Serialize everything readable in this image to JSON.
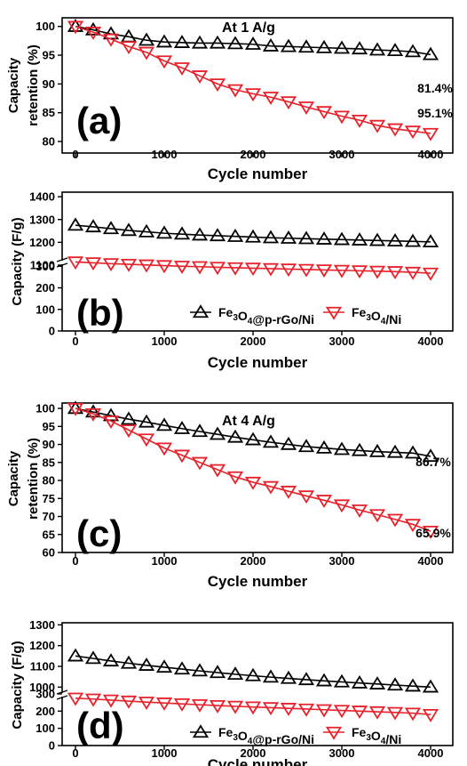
{
  "chart_data": [
    {
      "id": "a",
      "type": "line",
      "panel_label": "(a)",
      "title": "At 1 A/g",
      "xlabel": "Cycle number",
      "ylabel": [
        "Capacity",
        "retention (%)"
      ],
      "xlim": [
        -150,
        4250
      ],
      "ylim": [
        78,
        101.5
      ],
      "xticks": [
        0,
        1000,
        2000,
        3000,
        4000
      ],
      "yticks": [
        80,
        85,
        90,
        95,
        100
      ],
      "x": [
        0,
        200,
        400,
        600,
        800,
        1000,
        1200,
        1400,
        1600,
        1800,
        2000,
        2200,
        2400,
        2600,
        2800,
        3000,
        3200,
        3400,
        3600,
        3800,
        4000
      ],
      "series": [
        {
          "name": "Fe3O4@p-rGo/Ni",
          "color": "#000000",
          "marker": "triangle-up",
          "values": [
            100,
            99.4,
            98.7,
            98.2,
            97.6,
            97.3,
            97.2,
            97.1,
            97.1,
            97.0,
            96.9,
            96.6,
            96.5,
            96.4,
            96.3,
            96.2,
            96.1,
            95.9,
            95.8,
            95.6,
            95.1
          ],
          "end_label": "95.1%"
        },
        {
          "name": "Fe3O4/Ni",
          "color": "#e8212a",
          "marker": "triangle-down",
          "values": [
            100,
            99.0,
            97.8,
            96.5,
            95.5,
            94.0,
            92.8,
            91.4,
            90.0,
            89.0,
            88.3,
            87.7,
            86.9,
            86.0,
            85.2,
            84.4,
            83.7,
            82.8,
            82.2,
            81.8,
            81.4
          ],
          "end_label": "81.4%"
        }
      ]
    },
    {
      "id": "b",
      "type": "line",
      "panel_label": "(b)",
      "xlabel": "Cycle number",
      "ylabel": [
        "Capacity (F/g)"
      ],
      "xlim": [
        -150,
        4250
      ],
      "yticks": [
        0,
        100,
        200,
        300,
        1100,
        1200,
        1300,
        1400
      ],
      "xticks": [
        0,
        1000,
        2000,
        3000,
        4000
      ],
      "broken_axis": {
        "lower": [
          0,
          330
        ],
        "upper": [
          1100,
          1420
        ]
      },
      "x": [
        0,
        200,
        400,
        600,
        800,
        1000,
        1200,
        1400,
        1600,
        1800,
        2000,
        2200,
        2400,
        2600,
        2800,
        3000,
        3200,
        3400,
        3600,
        3800,
        4000
      ],
      "series": [
        {
          "name": "Fe3O4@p-rGo/Ni",
          "color": "#000000",
          "marker": "triangle-up",
          "values": [
            1275,
            1268,
            1260,
            1252,
            1246,
            1240,
            1236,
            1232,
            1229,
            1226,
            1223,
            1220,
            1218,
            1216,
            1214,
            1212,
            1210,
            1208,
            1206,
            1204,
            1202
          ]
        },
        {
          "name": "Fe3O4/Ni",
          "color": "#e8212a",
          "marker": "triangle-down",
          "values": [
            320,
            316,
            312,
            309,
            306,
            303,
            300,
            298,
            295,
            293,
            291,
            289,
            287,
            285,
            283,
            281,
            279,
            277,
            275,
            272,
            268
          ]
        }
      ],
      "legend": {
        "placement": "bottom-right",
        "entries": [
          {
            "pre": "Fe",
            "s1": "3",
            "mid": "O",
            "s2": "4",
            "post": "@p-rGo/Ni"
          },
          {
            "pre": "Fe",
            "s1": "3",
            "mid": "O",
            "s2": "4",
            "post": "/Ni"
          }
        ]
      }
    },
    {
      "id": "c",
      "type": "line",
      "panel_label": "(c)",
      "title": "At 4 A/g",
      "xlabel": "Cycle number",
      "ylabel": [
        "Capacity",
        "retention (%)"
      ],
      "xlim": [
        -150,
        4250
      ],
      "ylim": [
        60,
        101.5
      ],
      "xticks": [
        0,
        1000,
        2000,
        3000,
        4000
      ],
      "yticks": [
        60,
        65,
        70,
        75,
        80,
        85,
        90,
        95,
        100
      ],
      "x": [
        0,
        200,
        400,
        600,
        800,
        1000,
        1200,
        1400,
        1600,
        1800,
        2000,
        2200,
        2400,
        2600,
        2800,
        3000,
        3200,
        3400,
        3600,
        3800,
        4000
      ],
      "series": [
        {
          "name": "Fe3O4@p-rGo/Ni",
          "color": "#000000",
          "marker": "triangle-up",
          "values": [
            100,
            99.0,
            98.0,
            97.0,
            96.2,
            95.3,
            94.4,
            93.6,
            92.8,
            92.0,
            91.3,
            90.6,
            90.0,
            89.4,
            89.0,
            88.6,
            88.3,
            88.0,
            87.8,
            87.6,
            86.7
          ],
          "end_label": "86.7%"
        },
        {
          "name": "Fe3O4/Ni",
          "color": "#e8212a",
          "marker": "triangle-down",
          "values": [
            100,
            98.5,
            96.5,
            94.0,
            91.5,
            89.0,
            87.0,
            85.0,
            83.0,
            81.0,
            79.5,
            78.3,
            77.0,
            75.7,
            74.5,
            73.2,
            71.8,
            70.5,
            69.2,
            67.8,
            65.9
          ],
          "end_label": "65.9%"
        }
      ]
    },
    {
      "id": "d",
      "type": "line",
      "panel_label": "(d)",
      "xlabel": "Cycle number",
      "ylabel": [
        "Capacity (F/g)"
      ],
      "xlim": [
        -150,
        4250
      ],
      "yticks": [
        0,
        100,
        200,
        300,
        1000,
        1100,
        1200,
        1300
      ],
      "xticks": [
        0,
        1000,
        2000,
        3000,
        4000
      ],
      "broken_axis": {
        "lower": [
          0,
          310
        ],
        "upper": [
          950,
          1310
        ]
      },
      "x": [
        0,
        200,
        400,
        600,
        800,
        1000,
        1200,
        1400,
        1600,
        1800,
        2000,
        2200,
        2400,
        2600,
        2800,
        3000,
        3200,
        3400,
        3600,
        3800,
        4000
      ],
      "series": [
        {
          "name": "Fe3O4@p-rGo/Ni",
          "color": "#000000",
          "marker": "triangle-up",
          "values": [
            1150,
            1138,
            1126,
            1115,
            1105,
            1096,
            1087,
            1078,
            1070,
            1062,
            1055,
            1048,
            1042,
            1036,
            1030,
            1025,
            1020,
            1015,
            1010,
            1005,
            1000
          ]
        },
        {
          "name": "Fe3O4/Ni",
          "color": "#e8212a",
          "marker": "triangle-down",
          "values": [
            275,
            270,
            264,
            258,
            252,
            247,
            242,
            237,
            232,
            228,
            224,
            220,
            216,
            212,
            208,
            204,
            200,
            196,
            192,
            188,
            180
          ]
        }
      ],
      "legend": {
        "placement": "bottom-right",
        "entries": [
          {
            "pre": "Fe",
            "s1": "3",
            "mid": "O",
            "s2": "4",
            "post": "@p-rGo/Ni"
          },
          {
            "pre": "Fe",
            "s1": "3",
            "mid": "O",
            "s2": "4",
            "post": "/Ni"
          }
        ]
      }
    }
  ]
}
